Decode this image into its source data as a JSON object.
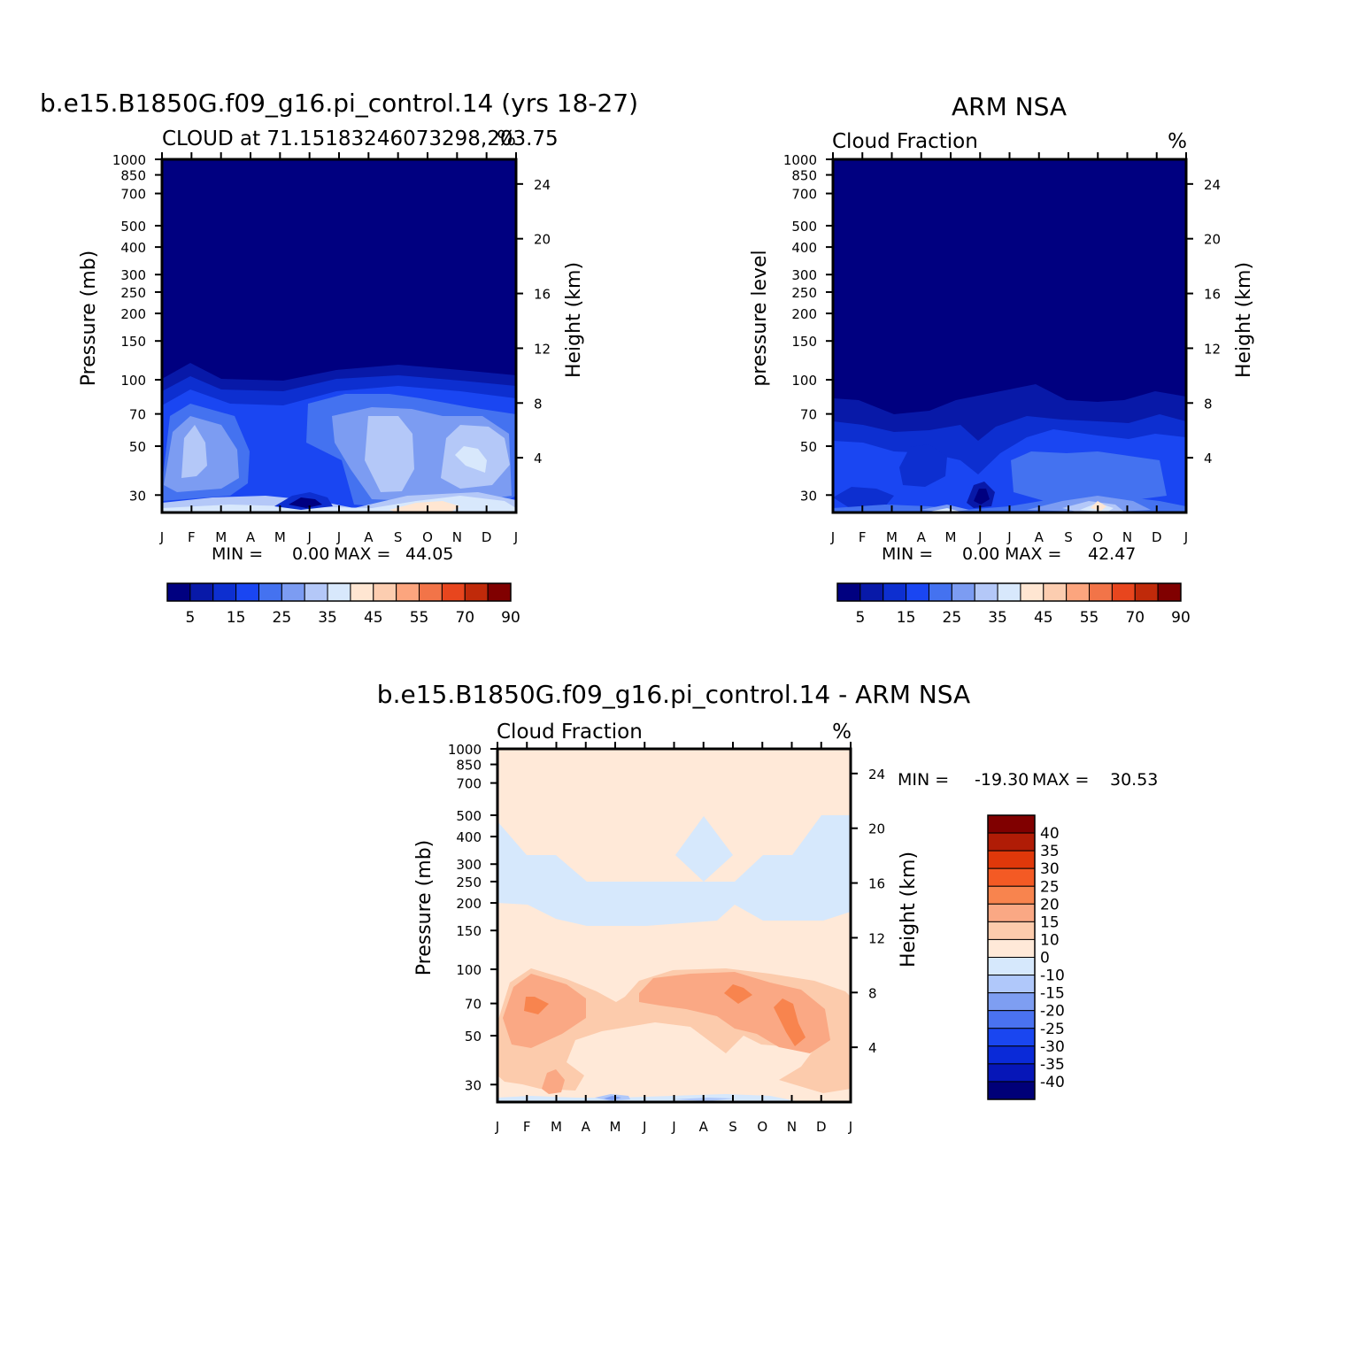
{
  "colors": {
    "abs_scale": [
      "#000080",
      "#0819a8",
      "#0d2fd0",
      "#1a46f2",
      "#4472f0",
      "#7c9cf2",
      "#b4c8f8",
      "#d8e8fc",
      "#ffe6d2",
      "#fccdb0",
      "#fca57e",
      "#f27448",
      "#e8461e",
      "#c02a0a",
      "#800000"
    ],
    "diff_scale": [
      "#800000",
      "#b01c06",
      "#e0380a",
      "#f45a24",
      "#f8844e",
      "#faa884",
      "#fccbac",
      "#ffe9d8",
      "#d6e8fc",
      "#b0c8fa",
      "#7e9ef2",
      "#4a72f0",
      "#1a46f0",
      "#0a2ad8",
      "#0616b8",
      "#000078"
    ]
  },
  "chart_data": [
    {
      "type": "heatmap",
      "title": "b.e15.B1850G.f09_g16.pi_control.14 (yrs 18-27)",
      "subtitle_left": "CLOUD at 71.15183246073298,203.75",
      "subtitle_right": "%",
      "x_ticks": [
        "J",
        "F",
        "M",
        "A",
        "M",
        "J",
        "J",
        "A",
        "S",
        "O",
        "N",
        "D",
        "J"
      ],
      "y_ticks": [
        "30",
        "50",
        "70",
        "100",
        "150",
        "200",
        "250",
        "300",
        "400",
        "500",
        "700",
        "850",
        "1000"
      ],
      "ylabel": "Pressure (mb)",
      "y2_ticks": [
        "24",
        "20",
        "16",
        "12",
        "8",
        "4"
      ],
      "y2label": "Height (km)",
      "min_label": "MIN =",
      "min_value": "0.00",
      "max_label": "MAX =",
      "max_value": "44.05",
      "colorbar_labels": [
        "5",
        "15",
        "25",
        "35",
        "45",
        "55",
        "70",
        "90"
      ]
    },
    {
      "type": "heatmap",
      "title": "ARM NSA",
      "subtitle_left": "Cloud Fraction",
      "subtitle_right": "%",
      "x_ticks": [
        "J",
        "F",
        "M",
        "A",
        "M",
        "J",
        "J",
        "A",
        "S",
        "O",
        "N",
        "D",
        "J"
      ],
      "y_ticks": [
        "30",
        "50",
        "70",
        "100",
        "150",
        "200",
        "250",
        "300",
        "400",
        "500",
        "700",
        "850",
        "1000"
      ],
      "ylabel": "pressure level",
      "y2_ticks": [
        "24",
        "20",
        "16",
        "12",
        "8",
        "4"
      ],
      "y2label": "Height (km)",
      "min_label": "MIN =",
      "min_value": "0.00",
      "max_label": "MAX =",
      "max_value": "42.47",
      "colorbar_labels": [
        "5",
        "15",
        "25",
        "35",
        "45",
        "55",
        "70",
        "90"
      ]
    },
    {
      "type": "heatmap",
      "title": "b.e15.B1850G.f09_g16.pi_control.14 - ARM NSA",
      "subtitle_left": "Cloud Fraction",
      "subtitle_right": "%",
      "x_ticks": [
        "J",
        "F",
        "M",
        "A",
        "M",
        "J",
        "J",
        "A",
        "S",
        "O",
        "N",
        "D",
        "J"
      ],
      "y_ticks": [
        "30",
        "50",
        "70",
        "100",
        "150",
        "200",
        "250",
        "300",
        "400",
        "500",
        "700",
        "850",
        "1000"
      ],
      "ylabel": "Pressure (mb)",
      "y2_ticks": [
        "24",
        "20",
        "16",
        "12",
        "8",
        "4"
      ],
      "y2label": "Height (km)",
      "min_label": "MIN =",
      "min_value": "-19.30",
      "max_label": "MAX =",
      "max_value": "30.53",
      "colorbar_labels": [
        "40",
        "35",
        "30",
        "25",
        "20",
        "15",
        "10",
        "0",
        "-10",
        "-15",
        "-20",
        "-25",
        "-30",
        "-35",
        "-40"
      ]
    }
  ]
}
